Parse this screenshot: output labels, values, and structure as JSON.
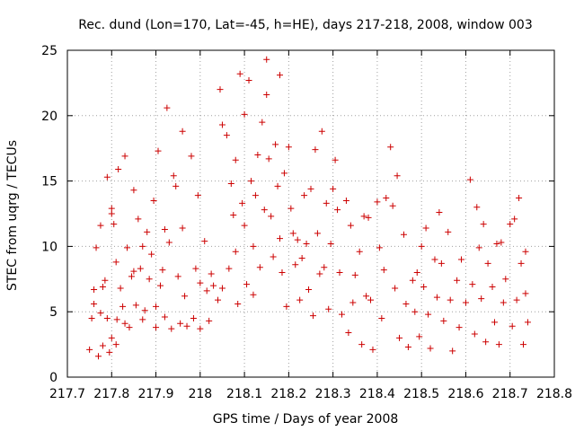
{
  "chart_data": {
    "type": "scatter",
    "title": "Rec. dund (Lon=170, Lat=-45, h=HE), days 217-218, 2008, window 003",
    "xlabel": "GPS time / Days of year 2008",
    "ylabel": "STEC from uqrg / TECUs",
    "xlim": [
      217.7,
      218.8
    ],
    "ylim": [
      0,
      25
    ],
    "x_ticks": [
      "217.7",
      "217.8",
      "217.9",
      "218",
      "218.1",
      "218.2",
      "218.3",
      "218.4",
      "218.5",
      "218.6",
      "218.7",
      "218.8"
    ],
    "y_ticks": [
      "0",
      "5",
      "10",
      "15",
      "20",
      "25"
    ],
    "grid": true,
    "marker": "plus",
    "color": "#cc0000",
    "series": [
      {
        "points": [
          [
            217.75,
            2.1
          ],
          [
            217.755,
            4.5
          ],
          [
            217.76,
            6.7
          ],
          [
            217.765,
            9.9
          ],
          [
            217.76,
            5.6
          ],
          [
            217.77,
            1.6
          ],
          [
            217.775,
            4.9
          ],
          [
            217.78,
            2.4
          ],
          [
            217.775,
            11.6
          ],
          [
            217.78,
            6.9
          ],
          [
            217.785,
            7.4
          ],
          [
            217.79,
            15.3
          ],
          [
            217.79,
            4.5
          ],
          [
            217.795,
            1.9
          ],
          [
            217.8,
            12.9
          ],
          [
            217.8,
            12.5
          ],
          [
            217.8,
            3.0
          ],
          [
            217.805,
            11.7
          ],
          [
            217.81,
            8.8
          ],
          [
            217.81,
            2.5
          ],
          [
            217.812,
            4.4
          ],
          [
            217.815,
            15.9
          ],
          [
            217.82,
            6.8
          ],
          [
            217.825,
            5.4
          ],
          [
            217.83,
            16.9
          ],
          [
            217.83,
            4.1
          ],
          [
            217.835,
            9.9
          ],
          [
            217.84,
            3.8
          ],
          [
            217.845,
            7.7
          ],
          [
            217.85,
            14.3
          ],
          [
            217.85,
            8.1
          ],
          [
            217.855,
            5.5
          ],
          [
            217.86,
            12.1
          ],
          [
            217.865,
            8.3
          ],
          [
            217.87,
            10.0
          ],
          [
            217.87,
            4.4
          ],
          [
            217.875,
            5.1
          ],
          [
            217.88,
            11.1
          ],
          [
            217.885,
            7.5
          ],
          [
            217.89,
            9.4
          ],
          [
            217.895,
            13.5
          ],
          [
            217.9,
            5.4
          ],
          [
            217.9,
            3.8
          ],
          [
            217.905,
            17.3
          ],
          [
            217.91,
            7.0
          ],
          [
            217.915,
            8.2
          ],
          [
            217.92,
            11.3
          ],
          [
            217.92,
            4.6
          ],
          [
            217.925,
            20.6
          ],
          [
            217.93,
            10.3
          ],
          [
            217.935,
            3.7
          ],
          [
            217.94,
            15.4
          ],
          [
            217.945,
            14.6
          ],
          [
            217.95,
            7.7
          ],
          [
            217.955,
            4.1
          ],
          [
            217.96,
            18.8
          ],
          [
            217.96,
            11.4
          ],
          [
            217.965,
            6.2
          ],
          [
            217.97,
            3.9
          ],
          [
            217.98,
            16.9
          ],
          [
            217.985,
            4.5
          ],
          [
            217.99,
            8.3
          ],
          [
            217.995,
            13.9
          ],
          [
            218.0,
            7.2
          ],
          [
            218.0,
            3.7
          ],
          [
            218.01,
            10.4
          ],
          [
            218.015,
            6.6
          ],
          [
            218.02,
            4.3
          ],
          [
            218.025,
            7.9
          ],
          [
            218.03,
            7.0
          ],
          [
            218.04,
            5.9
          ],
          [
            218.045,
            22.0
          ],
          [
            218.05,
            19.3
          ],
          [
            218.05,
            6.8
          ],
          [
            218.06,
            18.5
          ],
          [
            218.065,
            8.3
          ],
          [
            218.07,
            14.8
          ],
          [
            218.075,
            12.4
          ],
          [
            218.08,
            16.6
          ],
          [
            218.08,
            9.6
          ],
          [
            218.085,
            5.6
          ],
          [
            218.09,
            23.2
          ],
          [
            218.095,
            13.3
          ],
          [
            218.1,
            20.1
          ],
          [
            218.1,
            11.6
          ],
          [
            218.105,
            7.1
          ],
          [
            218.11,
            22.7
          ],
          [
            218.115,
            15.0
          ],
          [
            218.12,
            10.0
          ],
          [
            218.12,
            6.3
          ],
          [
            218.125,
            13.9
          ],
          [
            218.13,
            17.0
          ],
          [
            218.135,
            8.4
          ],
          [
            218.14,
            19.5
          ],
          [
            218.145,
            12.8
          ],
          [
            218.15,
            24.3
          ],
          [
            218.15,
            21.6
          ],
          [
            218.155,
            16.7
          ],
          [
            218.16,
            12.3
          ],
          [
            218.165,
            9.2
          ],
          [
            218.17,
            17.8
          ],
          [
            218.175,
            14.6
          ],
          [
            218.18,
            23.1
          ],
          [
            218.18,
            10.6
          ],
          [
            218.185,
            8.0
          ],
          [
            218.19,
            15.6
          ],
          [
            218.195,
            5.4
          ],
          [
            218.2,
            17.6
          ],
          [
            218.205,
            12.9
          ],
          [
            218.21,
            11.0
          ],
          [
            218.215,
            8.6
          ],
          [
            218.22,
            10.5
          ],
          [
            218.225,
            5.9
          ],
          [
            218.23,
            9.1
          ],
          [
            218.235,
            13.9
          ],
          [
            218.24,
            10.2
          ],
          [
            218.245,
            6.7
          ],
          [
            218.25,
            14.4
          ],
          [
            218.255,
            4.7
          ],
          [
            218.26,
            17.4
          ],
          [
            218.265,
            11.0
          ],
          [
            218.27,
            7.9
          ],
          [
            218.275,
            18.8
          ],
          [
            218.28,
            8.4
          ],
          [
            218.285,
            13.3
          ],
          [
            218.29,
            5.2
          ],
          [
            218.295,
            10.2
          ],
          [
            218.3,
            14.4
          ],
          [
            218.305,
            16.6
          ],
          [
            218.31,
            12.8
          ],
          [
            218.315,
            8.0
          ],
          [
            218.32,
            4.8
          ],
          [
            218.33,
            13.5
          ],
          [
            218.335,
            3.4
          ],
          [
            218.34,
            11.6
          ],
          [
            218.345,
            5.7
          ],
          [
            218.35,
            7.8
          ],
          [
            218.36,
            9.6
          ],
          [
            218.365,
            2.5
          ],
          [
            218.37,
            12.3
          ],
          [
            218.375,
            6.2
          ],
          [
            218.38,
            12.2
          ],
          [
            218.385,
            5.9
          ],
          [
            218.39,
            2.1
          ],
          [
            218.4,
            13.4
          ],
          [
            218.405,
            9.9
          ],
          [
            218.41,
            4.5
          ],
          [
            218.415,
            8.2
          ],
          [
            218.42,
            13.7
          ],
          [
            218.43,
            17.6
          ],
          [
            218.435,
            13.1
          ],
          [
            218.44,
            6.8
          ],
          [
            218.445,
            15.4
          ],
          [
            218.45,
            3.0
          ],
          [
            218.46,
            10.9
          ],
          [
            218.465,
            5.6
          ],
          [
            218.47,
            2.3
          ],
          [
            218.48,
            7.4
          ],
          [
            218.485,
            5.0
          ],
          [
            218.49,
            8.0
          ],
          [
            218.495,
            3.1
          ],
          [
            218.5,
            10.0
          ],
          [
            218.505,
            6.9
          ],
          [
            218.51,
            11.4
          ],
          [
            218.515,
            4.8
          ],
          [
            218.52,
            2.2
          ],
          [
            218.53,
            9.0
          ],
          [
            218.535,
            6.1
          ],
          [
            218.54,
            12.6
          ],
          [
            218.545,
            8.7
          ],
          [
            218.55,
            4.3
          ],
          [
            218.56,
            11.1
          ],
          [
            218.565,
            5.9
          ],
          [
            218.57,
            2.0
          ],
          [
            218.58,
            7.4
          ],
          [
            218.585,
            3.8
          ],
          [
            218.59,
            9.0
          ],
          [
            218.6,
            5.7
          ],
          [
            218.61,
            15.1
          ],
          [
            218.615,
            7.1
          ],
          [
            218.62,
            3.3
          ],
          [
            218.625,
            13.0
          ],
          [
            218.63,
            9.9
          ],
          [
            218.635,
            6.0
          ],
          [
            218.64,
            11.7
          ],
          [
            218.645,
            2.7
          ],
          [
            218.65,
            8.7
          ],
          [
            218.66,
            6.9
          ],
          [
            218.665,
            4.2
          ],
          [
            218.67,
            10.2
          ],
          [
            218.675,
            2.5
          ],
          [
            218.68,
            10.3
          ],
          [
            218.685,
            5.7
          ],
          [
            218.69,
            7.5
          ],
          [
            218.7,
            11.7
          ],
          [
            218.705,
            3.9
          ],
          [
            218.71,
            12.1
          ],
          [
            218.715,
            5.9
          ],
          [
            218.72,
            13.7
          ],
          [
            218.725,
            8.7
          ],
          [
            218.73,
            2.5
          ],
          [
            218.735,
            9.6
          ],
          [
            218.735,
            6.4
          ],
          [
            218.74,
            4.2
          ]
        ]
      }
    ]
  }
}
